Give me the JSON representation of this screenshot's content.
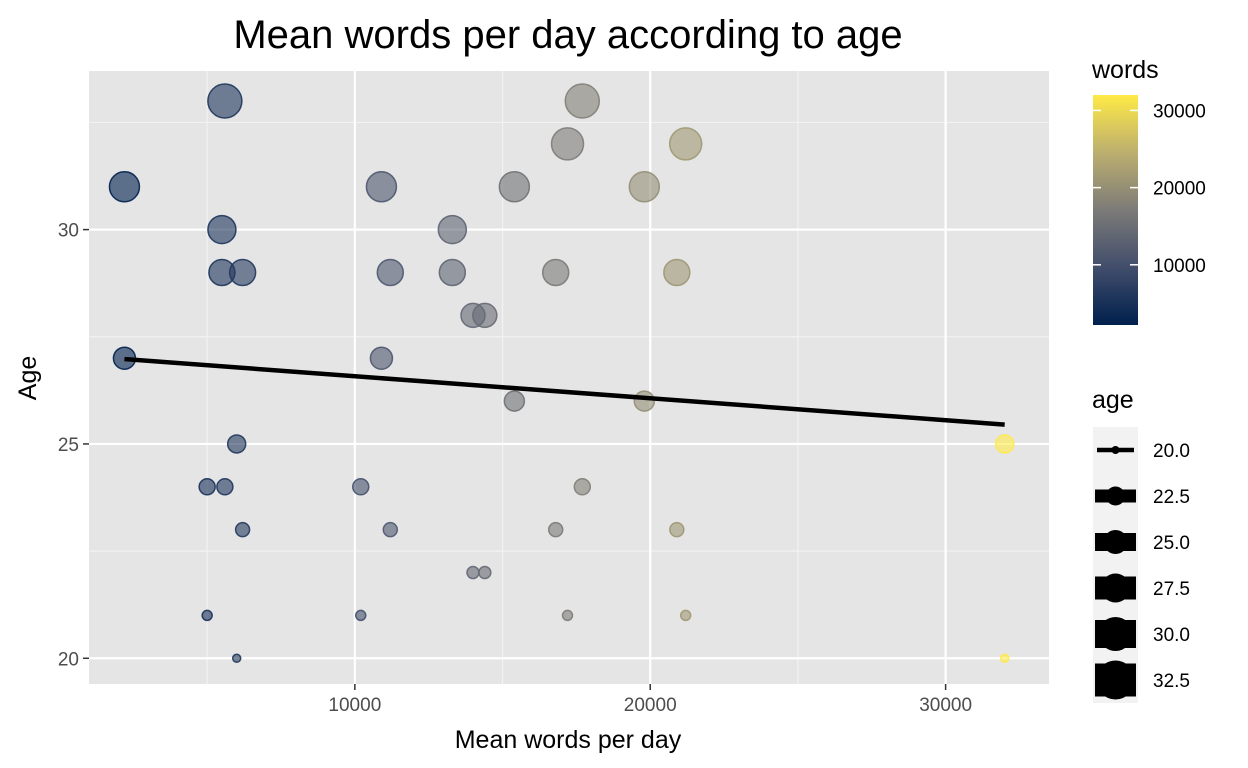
{
  "chart_data": {
    "type": "scatter",
    "title": "Mean words per day according to age",
    "xlabel": "Mean words per day",
    "ylabel": "Age",
    "xlim": [
      1000,
      33500
    ],
    "ylim": [
      19.4,
      33.7
    ],
    "x_ticks": [
      10000,
      20000,
      30000
    ],
    "y_ticks": [
      20,
      25,
      30
    ],
    "x_tick_labels": [
      "10000",
      "20000",
      "30000"
    ],
    "y_tick_labels": [
      "20",
      "25",
      "30"
    ],
    "grid": true,
    "colour_legend": {
      "title": "words",
      "range": [
        2200,
        32000
      ],
      "ticks": [
        "10000",
        "20000",
        "30000"
      ],
      "colors": [
        "#00204d",
        "#414d6b",
        "#7c7b78",
        "#bcaf6f",
        "#ffea46"
      ]
    },
    "size_legend": {
      "title": "age",
      "labels": [
        "20.0",
        "22.5",
        "25.0",
        "27.5",
        "30.0",
        "32.5"
      ]
    },
    "points": [
      {
        "x": 5600,
        "y": 33,
        "words": 5600
      },
      {
        "x": 17700,
        "y": 33,
        "words": 17700
      },
      {
        "x": 17200,
        "y": 32,
        "words": 17200
      },
      {
        "x": 21200,
        "y": 32,
        "words": 21200
      },
      {
        "x": 2200,
        "y": 31,
        "words": 2200
      },
      {
        "x": 10900,
        "y": 31,
        "words": 10900
      },
      {
        "x": 15400,
        "y": 31,
        "words": 15400
      },
      {
        "x": 19800,
        "y": 31,
        "words": 19800
      },
      {
        "x": 5500,
        "y": 30,
        "words": 5500
      },
      {
        "x": 13300,
        "y": 30,
        "words": 13300
      },
      {
        "x": 5500,
        "y": 29,
        "words": 5500
      },
      {
        "x": 6200,
        "y": 29,
        "words": 6200
      },
      {
        "x": 11200,
        "y": 29,
        "words": 11200
      },
      {
        "x": 13300,
        "y": 29,
        "words": 13300
      },
      {
        "x": 16800,
        "y": 29,
        "words": 16800
      },
      {
        "x": 20900,
        "y": 29,
        "words": 20900
      },
      {
        "x": 14000,
        "y": 28,
        "words": 14000
      },
      {
        "x": 14400,
        "y": 28,
        "words": 14400
      },
      {
        "x": 2200,
        "y": 27,
        "words": 2200
      },
      {
        "x": 10900,
        "y": 27,
        "words": 10900
      },
      {
        "x": 15400,
        "y": 26,
        "words": 15400
      },
      {
        "x": 19800,
        "y": 26,
        "words": 19800
      },
      {
        "x": 6000,
        "y": 25,
        "words": 6000
      },
      {
        "x": 32000,
        "y": 25,
        "words": 32000
      },
      {
        "x": 5000,
        "y": 24,
        "words": 5000
      },
      {
        "x": 5600,
        "y": 24,
        "words": 5600
      },
      {
        "x": 10200,
        "y": 24,
        "words": 10200
      },
      {
        "x": 17700,
        "y": 24,
        "words": 17700
      },
      {
        "x": 6200,
        "y": 23,
        "words": 6200
      },
      {
        "x": 11200,
        "y": 23,
        "words": 11200
      },
      {
        "x": 16800,
        "y": 23,
        "words": 16800
      },
      {
        "x": 20900,
        "y": 23,
        "words": 20900
      },
      {
        "x": 14000,
        "y": 22,
        "words": 14000
      },
      {
        "x": 14400,
        "y": 22,
        "words": 14400
      },
      {
        "x": 5000,
        "y": 21,
        "words": 5000
      },
      {
        "x": 10200,
        "y": 21,
        "words": 10200
      },
      {
        "x": 17200,
        "y": 21,
        "words": 17200
      },
      {
        "x": 21200,
        "y": 21,
        "words": 21200
      },
      {
        "x": 6000,
        "y": 20,
        "words": 6000
      },
      {
        "x": 32000,
        "y": 20,
        "words": 32000
      }
    ],
    "trend_line": {
      "x": [
        2200,
        32000
      ],
      "y": [
        26.98,
        25.45
      ]
    }
  }
}
